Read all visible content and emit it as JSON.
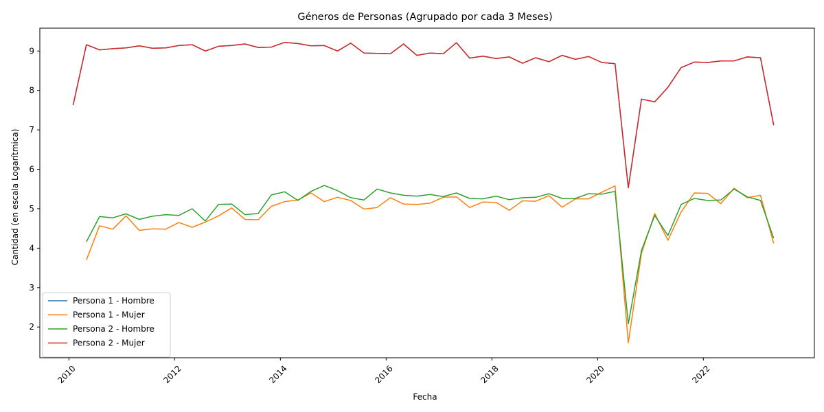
{
  "chart_data": {
    "type": "line",
    "title": "Géneros de Personas (Agrupado por cada 3 Meses)",
    "xlabel": "Fecha",
    "ylabel": "Cantidad (en escala Logarítmica)",
    "xlim": [
      2009.45,
      2024.1
    ],
    "ylim": [
      1.22,
      9.58
    ],
    "x_ticks": [
      2010,
      2012,
      2014,
      2016,
      2018,
      2020,
      2022
    ],
    "x_tick_labels": [
      "2010",
      "2012",
      "2014",
      "2016",
      "2018",
      "2020",
      "2022"
    ],
    "y_ticks": [
      2,
      3,
      4,
      5,
      6,
      7,
      8,
      9
    ],
    "y_tick_labels": [
      "2",
      "3",
      "4",
      "5",
      "6",
      "7",
      "8",
      "9"
    ],
    "grid": false,
    "legend_position": "lower-left",
    "x": [
      2010.08,
      2010.33,
      2010.58,
      2010.83,
      2011.08,
      2011.33,
      2011.58,
      2011.83,
      2012.08,
      2012.33,
      2012.58,
      2012.83,
      2013.08,
      2013.33,
      2013.58,
      2013.83,
      2014.08,
      2014.33,
      2014.58,
      2014.83,
      2015.08,
      2015.33,
      2015.58,
      2015.83,
      2016.08,
      2016.33,
      2016.58,
      2016.83,
      2017.08,
      2017.33,
      2017.58,
      2017.83,
      2018.08,
      2018.33,
      2018.58,
      2018.83,
      2019.08,
      2019.33,
      2019.58,
      2019.83,
      2020.08,
      2020.33,
      2020.58,
      2020.83,
      2021.08,
      2021.33,
      2021.58,
      2021.83,
      2022.08,
      2022.33,
      2022.58,
      2022.83,
      2023.08,
      2023.33
    ],
    "series": [
      {
        "name": "Persona 1 - Hombre",
        "color": "#1f77b4",
        "values": [
          7.63,
          9.16,
          9.03,
          9.06,
          9.08,
          9.13,
          9.07,
          9.08,
          9.14,
          9.16,
          9.0,
          9.12,
          9.14,
          9.18,
          9.09,
          9.1,
          9.22,
          9.19,
          9.13,
          9.14,
          9.0,
          9.2,
          8.95,
          8.94,
          8.93,
          9.18,
          8.89,
          8.95,
          8.93,
          9.21,
          8.82,
          8.87,
          8.81,
          8.85,
          8.69,
          8.83,
          8.73,
          8.89,
          8.79,
          8.86,
          8.71,
          8.68,
          5.53,
          7.78,
          7.71,
          8.08,
          8.58,
          8.72,
          8.71,
          8.75,
          8.75,
          8.85,
          8.83,
          7.12
        ]
      },
      {
        "name": "Persona 1 - Mujer",
        "color": "#ff7f0e",
        "values": [
          null,
          3.7,
          4.57,
          4.48,
          4.82,
          4.45,
          4.49,
          4.48,
          4.65,
          4.53,
          4.66,
          4.82,
          5.02,
          4.73,
          4.72,
          5.06,
          5.18,
          5.22,
          5.4,
          5.18,
          5.29,
          5.21,
          4.99,
          5.03,
          5.28,
          5.12,
          5.11,
          5.14,
          5.29,
          5.3,
          5.03,
          5.17,
          5.16,
          4.96,
          5.2,
          5.19,
          5.33,
          5.04,
          5.25,
          5.25,
          5.42,
          5.58,
          1.6,
          3.87,
          4.88,
          4.2,
          4.92,
          5.4,
          5.39,
          5.13,
          5.52,
          5.28,
          5.34,
          4.12
        ]
      },
      {
        "name": "Persona 2 - Hombre",
        "color": "#2ca02c",
        "values": [
          null,
          4.16,
          4.8,
          4.77,
          4.87,
          4.73,
          4.81,
          4.85,
          4.83,
          5.0,
          4.69,
          5.11,
          5.12,
          4.85,
          4.88,
          5.35,
          5.43,
          5.21,
          5.44,
          5.59,
          5.46,
          5.28,
          5.22,
          5.5,
          5.4,
          5.34,
          5.32,
          5.36,
          5.31,
          5.4,
          5.26,
          5.25,
          5.32,
          5.23,
          5.28,
          5.29,
          5.38,
          5.26,
          5.26,
          5.38,
          5.37,
          5.44,
          2.08,
          3.94,
          4.83,
          4.32,
          5.11,
          5.26,
          5.21,
          5.22,
          5.5,
          5.3,
          5.21,
          4.25
        ]
      },
      {
        "name": "Persona 2 - Mujer",
        "color": "#d62728",
        "values": [
          7.63,
          9.16,
          9.03,
          9.06,
          9.08,
          9.13,
          9.07,
          9.08,
          9.14,
          9.16,
          9.0,
          9.12,
          9.14,
          9.18,
          9.09,
          9.1,
          9.22,
          9.19,
          9.13,
          9.14,
          9.0,
          9.2,
          8.95,
          8.94,
          8.93,
          9.18,
          8.89,
          8.95,
          8.93,
          9.21,
          8.82,
          8.87,
          8.81,
          8.85,
          8.69,
          8.83,
          8.73,
          8.89,
          8.79,
          8.86,
          8.71,
          8.68,
          5.53,
          7.78,
          7.71,
          8.08,
          8.58,
          8.72,
          8.71,
          8.75,
          8.75,
          8.85,
          8.83,
          7.12
        ]
      }
    ]
  }
}
